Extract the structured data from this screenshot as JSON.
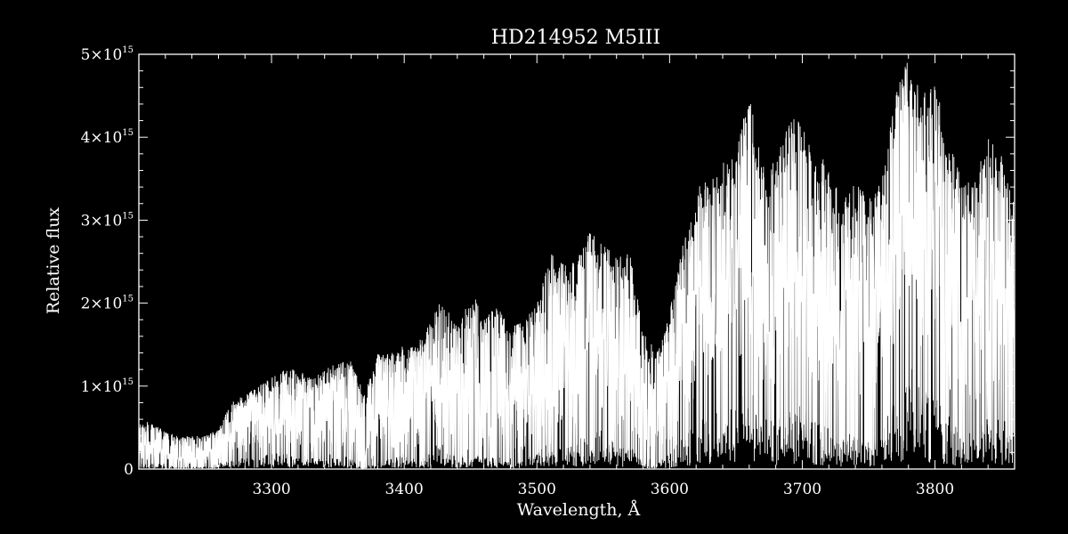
{
  "chart_data": {
    "type": "line",
    "title": "HD214952   M5III",
    "xlabel": "Wavelength, Å",
    "ylabel": "Relative flux",
    "xlim": [
      3200,
      3860
    ],
    "ylim": [
      0,
      5000000000000000.0
    ],
    "x_ticks": [
      3300,
      3400,
      3500,
      3600,
      3700,
      3800
    ],
    "y_ticks": [
      {
        "value": 0,
        "mantissa": "0",
        "exponent": ""
      },
      {
        "value": 1000000000000000.0,
        "mantissa": "1×10",
        "exponent": "15"
      },
      {
        "value": 2000000000000000.0,
        "mantissa": "2×10",
        "exponent": "15"
      },
      {
        "value": 3000000000000000.0,
        "mantissa": "3×10",
        "exponent": "15"
      },
      {
        "value": 4000000000000000.0,
        "mantissa": "4×10",
        "exponent": "15"
      },
      {
        "value": 5000000000000000.0,
        "mantissa": "5×10",
        "exponent": "15"
      }
    ],
    "grid": false,
    "line_color": "#ffffff",
    "background": "#000000",
    "series": [
      {
        "name": "",
        "x": [
          3200,
          3210,
          3220,
          3230,
          3240,
          3250,
          3260,
          3270,
          3280,
          3290,
          3300,
          3310,
          3320,
          3330,
          3340,
          3350,
          3360,
          3370,
          3380,
          3390,
          3400,
          3410,
          3420,
          3430,
          3440,
          3450,
          3460,
          3470,
          3480,
          3490,
          3500,
          3510,
          3520,
          3530,
          3540,
          3550,
          3560,
          3570,
          3580,
          3590,
          3600,
          3610,
          3620,
          3630,
          3640,
          3650,
          3660,
          3670,
          3680,
          3690,
          3700,
          3710,
          3720,
          3730,
          3740,
          3750,
          3760,
          3770,
          3780,
          3790,
          3800,
          3810,
          3820,
          3830,
          3840,
          3850,
          3860
        ],
        "upper": [
          600000000000000.0,
          550000000000000.0,
          450000000000000.0,
          400000000000000.0,
          400000000000000.0,
          400000000000000.0,
          500000000000000.0,
          800000000000000.0,
          900000000000000.0,
          1000000000000000.0,
          1100000000000000.0,
          1200000000000000.0,
          1200000000000000.0,
          1100000000000000.0,
          1200000000000000.0,
          1300000000000000.0,
          1300000000000000.0,
          900000000000000.0,
          1400000000000000.0,
          1400000000000000.0,
          1500000000000000.0,
          1500000000000000.0,
          1800000000000000.0,
          2100000000000000.0,
          1700000000000000.0,
          2200000000000000.0,
          1800000000000000.0,
          2000000000000000.0,
          1700000000000000.0,
          1800000000000000.0,
          2000000000000000.0,
          2600000000000000.0,
          2500000000000000.0,
          2500000000000000.0,
          2900000000000000.0,
          2700000000000000.0,
          2600000000000000.0,
          2600000000000000.0,
          1700000000000000.0,
          1400000000000000.0,
          1900000000000000.0,
          2700000000000000.0,
          3400000000000000.0,
          3500000000000000.0,
          3700000000000000.0,
          3900000000000000.0,
          4500000000000000.0,
          3700000000000000.0,
          3700000000000000.0,
          4200000000000000.0,
          4300000000000000.0,
          3800000000000000.0,
          3700000000000000.0,
          3200000000000000.0,
          3500000000000000.0,
          3300000000000000.0,
          3500000000000000.0,
          4500000000000000.0,
          5000000000000000.0,
          4500000000000000.0,
          4700000000000000.0,
          4000000000000000.0,
          3500000000000000.0,
          3500000000000000.0,
          4000000000000000.0,
          3800000000000000.0,
          3200000000000000.0
        ],
        "lower": [
          100000000000000.0,
          100000000000000.0,
          100000000000000.0,
          50000000000000.0,
          50000000000000.0,
          50000000000000.0,
          100000000000000.0,
          200000000000000.0,
          200000000000000.0,
          200000000000000.0,
          300000000000000.0,
          300000000000000.0,
          300000000000000.0,
          200000000000000.0,
          300000000000000.0,
          300000000000000.0,
          200000000000000.0,
          20000000000000.0,
          200000000000000.0,
          200000000000000.0,
          300000000000000.0,
          200000000000000.0,
          400000000000000.0,
          500000000000000.0,
          200000000000000.0,
          400000000000000.0,
          200000000000000.0,
          300000000000000.0,
          100000000000000.0,
          200000000000000.0,
          300000000000000.0,
          500000000000000.0,
          400000000000000.0,
          500000000000000.0,
          800000000000000.0,
          700000000000000.0,
          500000000000000.0,
          500000000000000.0,
          100000000000000.0,
          100000000000000.0,
          300000000000000.0,
          600000000000000.0,
          900000000000000.0,
          1000000000000000.0,
          1100000000000000.0,
          1300000000000000.0,
          1500000000000000.0,
          1000000000000000.0,
          900000000000000.0,
          1200000000000000.0,
          1200000000000000.0,
          900000000000000.0,
          800000000000000.0,
          600000000000000.0,
          800000000000000.0,
          600000000000000.0,
          700000000000000.0,
          1600000000000000.0,
          2000000000000000.0,
          1400000000000000.0,
          1600000000000000.0,
          1000000000000000.0,
          700000000000000.0,
          700000000000000.0,
          1000000000000000.0,
          1000000000000000.0,
          700000000000000.0
        ]
      }
    ]
  }
}
